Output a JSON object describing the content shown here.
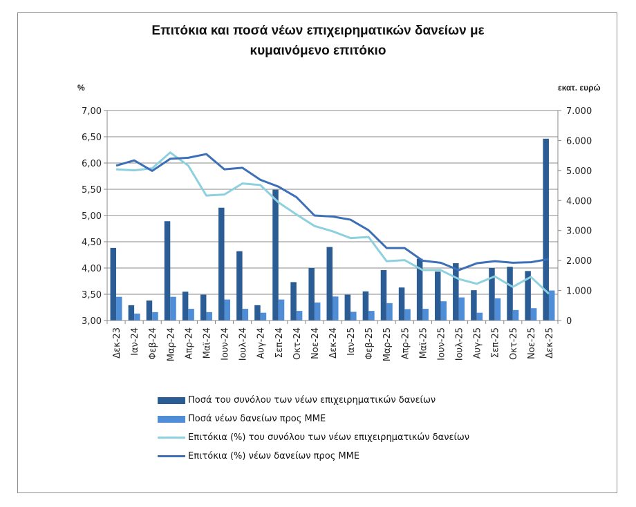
{
  "chart_data": {
    "type": "bar+line",
    "title_lines": [
      "Επιτόκια και ποσά νέων επιχειρηματικών δανείων με",
      "κυμαινόμενο επιτόκιο"
    ],
    "ylabel_left": "%",
    "ylabel_right": "εκατ. ευρώ",
    "ylim_left": [
      3.0,
      7.0
    ],
    "ylim_right": [
      0,
      7000
    ],
    "yticks_left": [
      "3,00",
      "3,50",
      "4,00",
      "4,50",
      "5,00",
      "5,50",
      "6,00",
      "6,50",
      "7,00"
    ],
    "yticks_right": [
      "0",
      "1.000",
      "2.000",
      "3.000",
      "4.000",
      "5.000",
      "6.000",
      "7.000"
    ],
    "grid": true,
    "legend_position": "bottom",
    "categories": [
      "Δεκ-23",
      "Ιαν-24",
      "Φεβ-24",
      "Μαρ-24",
      "Απρ-24",
      "Μαϊ-24",
      "Ιουν-24",
      "Ιουλ-24",
      "Αυγ-24",
      "Σεπ-24",
      "Οκτ-24",
      "Νοε-24",
      "Δεκ-24",
      "Ιαν-25",
      "Φεβ-25",
      "Μαρ-25",
      "Απρ-25",
      "Μαϊ-25",
      "Ιουν-25",
      "Ιουλ-25",
      "Αυγ-25",
      "Σεπ-25",
      "Οκτ-25",
      "Νοε-25",
      "Δεκ-25"
    ],
    "series": [
      {
        "name": "Ποσά του συνόλου των νέων επιχειρηματικών δανείων",
        "type": "bar",
        "axis": "right",
        "color": "#2b5c93",
        "values": [
          2420,
          510,
          665,
          3310,
          960,
          860,
          3760,
          2310,
          510,
          4360,
          1280,
          1750,
          2450,
          860,
          970,
          1680,
          1100,
          2060,
          1630,
          1910,
          1010,
          1750,
          1790,
          1650,
          6060
        ]
      },
      {
        "name": "Ποσά νέων δανείων προς ΜΜΕ",
        "type": "bar",
        "axis": "right",
        "color": "#4f8ed6",
        "values": [
          790,
          230,
          280,
          790,
          390,
          280,
          700,
          390,
          260,
          700,
          320,
          600,
          800,
          290,
          320,
          580,
          380,
          390,
          640,
          770,
          260,
          740,
          350,
          410,
          1000
        ]
      },
      {
        "name": "Επιτόκια (%) του συνόλου των νέων επιχειρηματικών δανείων",
        "type": "line",
        "axis": "left",
        "color": "#8dd0de",
        "values": [
          5.88,
          5.86,
          5.9,
          6.2,
          5.95,
          5.38,
          5.4,
          5.61,
          5.58,
          5.25,
          5.02,
          4.8,
          4.7,
          4.57,
          4.59,
          4.13,
          4.15,
          3.96,
          3.96,
          3.79,
          3.7,
          3.84,
          3.64,
          3.83,
          3.51
        ]
      },
      {
        "name": "Επιτόκια (%) νέων δανείων προς ΜΜΕ",
        "type": "line",
        "axis": "left",
        "color": "#3c6fb6",
        "values": [
          5.95,
          6.05,
          5.85,
          6.08,
          6.1,
          6.17,
          5.88,
          5.91,
          5.68,
          5.55,
          5.35,
          5.0,
          4.98,
          4.92,
          4.72,
          4.38,
          4.38,
          4.14,
          4.1,
          3.96,
          4.09,
          4.13,
          4.1,
          4.11,
          4.17
        ]
      }
    ]
  }
}
